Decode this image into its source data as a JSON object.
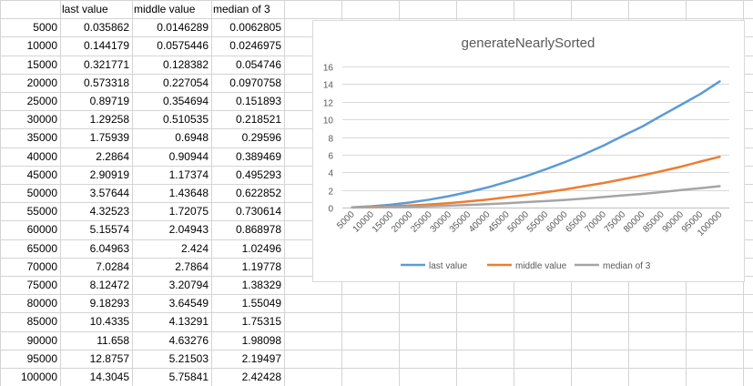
{
  "sheet": {
    "headers": [
      "",
      "last value",
      "middle value",
      "median of 3"
    ],
    "rows": [
      [
        "5000",
        "0.035862",
        "0.0146289",
        "0.0062805"
      ],
      [
        "10000",
        "0.144179",
        "0.0575446",
        "0.0246975"
      ],
      [
        "15000",
        "0.321771",
        "0.128382",
        "0.054746"
      ],
      [
        "20000",
        "0.573318",
        "0.227054",
        "0.0970758"
      ],
      [
        "25000",
        "0.89719",
        "0.354694",
        "0.151893"
      ],
      [
        "30000",
        "1.29258",
        "0.510535",
        "0.218521"
      ],
      [
        "35000",
        "1.75939",
        "0.6948",
        "0.29596"
      ],
      [
        "40000",
        "2.2864",
        "0.90944",
        "0.389469"
      ],
      [
        "45000",
        "2.90919",
        "1.17374",
        "0.495293"
      ],
      [
        "50000",
        "3.57644",
        "1.43648",
        "0.622852"
      ],
      [
        "55000",
        "4.32523",
        "1.72075",
        "0.730614"
      ],
      [
        "60000",
        "5.15574",
        "2.04943",
        "0.868978"
      ],
      [
        "65000",
        "6.04963",
        "2.424",
        "1.02496"
      ],
      [
        "70000",
        "7.0284",
        "2.7864",
        "1.19778"
      ],
      [
        "75000",
        "8.12472",
        "3.20794",
        "1.38329"
      ],
      [
        "80000",
        "9.18293",
        "3.64549",
        "1.55049"
      ],
      [
        "85000",
        "10.4335",
        "4.13291",
        "1.75315"
      ],
      [
        "90000",
        "11.658",
        "4.63276",
        "1.98098"
      ],
      [
        "95000",
        "12.8757",
        "5.21503",
        "2.19497"
      ],
      [
        "100000",
        "14.3045",
        "5.75841",
        "2.42428"
      ]
    ]
  },
  "chart_data": {
    "type": "line",
    "title": "generateNearlySorted",
    "xlabel": "",
    "ylabel": "",
    "ylim": [
      0,
      16
    ],
    "yticks": [
      0,
      2,
      4,
      6,
      8,
      10,
      12,
      14,
      16
    ],
    "grid": true,
    "legend": "bottom",
    "categories": [
      "5000",
      "10000",
      "15000",
      "20000",
      "25000",
      "30000",
      "35000",
      "40000",
      "45000",
      "50000",
      "55000",
      "60000",
      "65000",
      "70000",
      "75000",
      "80000",
      "85000",
      "90000",
      "95000",
      "100000"
    ],
    "series": [
      {
        "name": "last value",
        "color": "#5b9bd5",
        "values": [
          0.035862,
          0.144179,
          0.321771,
          0.573318,
          0.89719,
          1.29258,
          1.75939,
          2.2864,
          2.90919,
          3.57644,
          4.32523,
          5.15574,
          6.04963,
          7.0284,
          8.12472,
          9.18293,
          10.4335,
          11.658,
          12.8757,
          14.3045
        ]
      },
      {
        "name": "middle value",
        "color": "#ed7d31",
        "values": [
          0.0146289,
          0.0575446,
          0.128382,
          0.227054,
          0.354694,
          0.510535,
          0.6948,
          0.90944,
          1.17374,
          1.43648,
          1.72075,
          2.04943,
          2.424,
          2.7864,
          3.20794,
          3.64549,
          4.13291,
          4.63276,
          5.21503,
          5.75841
        ]
      },
      {
        "name": "median of 3",
        "color": "#a5a5a5",
        "values": [
          0.0062805,
          0.0246975,
          0.054746,
          0.0970758,
          0.151893,
          0.218521,
          0.29596,
          0.389469,
          0.495293,
          0.622852,
          0.730614,
          0.868978,
          1.02496,
          1.19778,
          1.38329,
          1.55049,
          1.75315,
          1.98098,
          2.19497,
          2.42428
        ]
      }
    ]
  }
}
